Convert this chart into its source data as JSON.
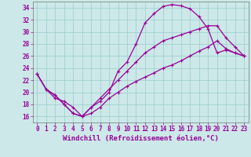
{
  "xlabel": "Windchill (Refroidissement éolien,°C)",
  "xlim": [
    -0.5,
    23.5
  ],
  "ylim": [
    15.0,
    35.0
  ],
  "xticks": [
    0,
    1,
    2,
    3,
    4,
    5,
    6,
    7,
    8,
    9,
    10,
    11,
    12,
    13,
    14,
    15,
    16,
    17,
    18,
    19,
    20,
    21,
    22,
    23
  ],
  "yticks": [
    16,
    18,
    20,
    22,
    24,
    26,
    28,
    30,
    32,
    34
  ],
  "bg_color": "#cce8e8",
  "line_color": "#990099",
  "grid_color": "#99cccc",
  "line1_x": [
    0,
    1,
    2,
    3,
    4,
    5,
    6,
    7,
    8,
    9,
    10,
    11,
    12,
    13,
    14,
    15,
    16,
    17,
    18,
    19,
    20,
    21,
    22,
    23
  ],
  "line1_y": [
    23.0,
    20.5,
    19.5,
    18.0,
    16.5,
    16.0,
    17.5,
    18.5,
    20.0,
    23.5,
    25.0,
    28.0,
    31.5,
    33.0,
    34.2,
    34.5,
    34.3,
    33.8,
    32.5,
    30.5,
    26.5,
    27.0,
    26.5,
    26.0
  ],
  "line2_x": [
    0,
    1,
    2,
    3,
    4,
    5,
    6,
    7,
    8,
    9,
    10,
    11,
    12,
    13,
    14,
    15,
    16,
    17,
    18,
    19,
    20,
    21,
    22,
    23
  ],
  "line2_y": [
    23.0,
    20.5,
    19.0,
    18.5,
    17.5,
    16.0,
    16.5,
    17.5,
    19.0,
    20.0,
    21.0,
    21.8,
    22.5,
    23.2,
    24.0,
    24.5,
    25.2,
    26.0,
    26.8,
    27.5,
    28.5,
    27.2,
    26.5,
    26.0
  ],
  "line3_x": [
    0,
    1,
    2,
    3,
    4,
    5,
    6,
    7,
    8,
    9,
    10,
    11,
    12,
    13,
    14,
    15,
    16,
    17,
    18,
    19,
    20,
    21,
    22,
    23
  ],
  "line3_y": [
    23.0,
    20.5,
    19.5,
    18.0,
    16.5,
    16.0,
    17.5,
    19.0,
    20.5,
    22.0,
    23.5,
    25.0,
    26.5,
    27.5,
    28.5,
    29.0,
    29.5,
    30.0,
    30.5,
    31.0,
    31.0,
    29.0,
    27.5,
    26.0
  ],
  "marker": "+",
  "markersize": 3.5,
  "linewidth": 0.9,
  "tick_fontsize": 5.5,
  "xlabel_fontsize": 6.5
}
